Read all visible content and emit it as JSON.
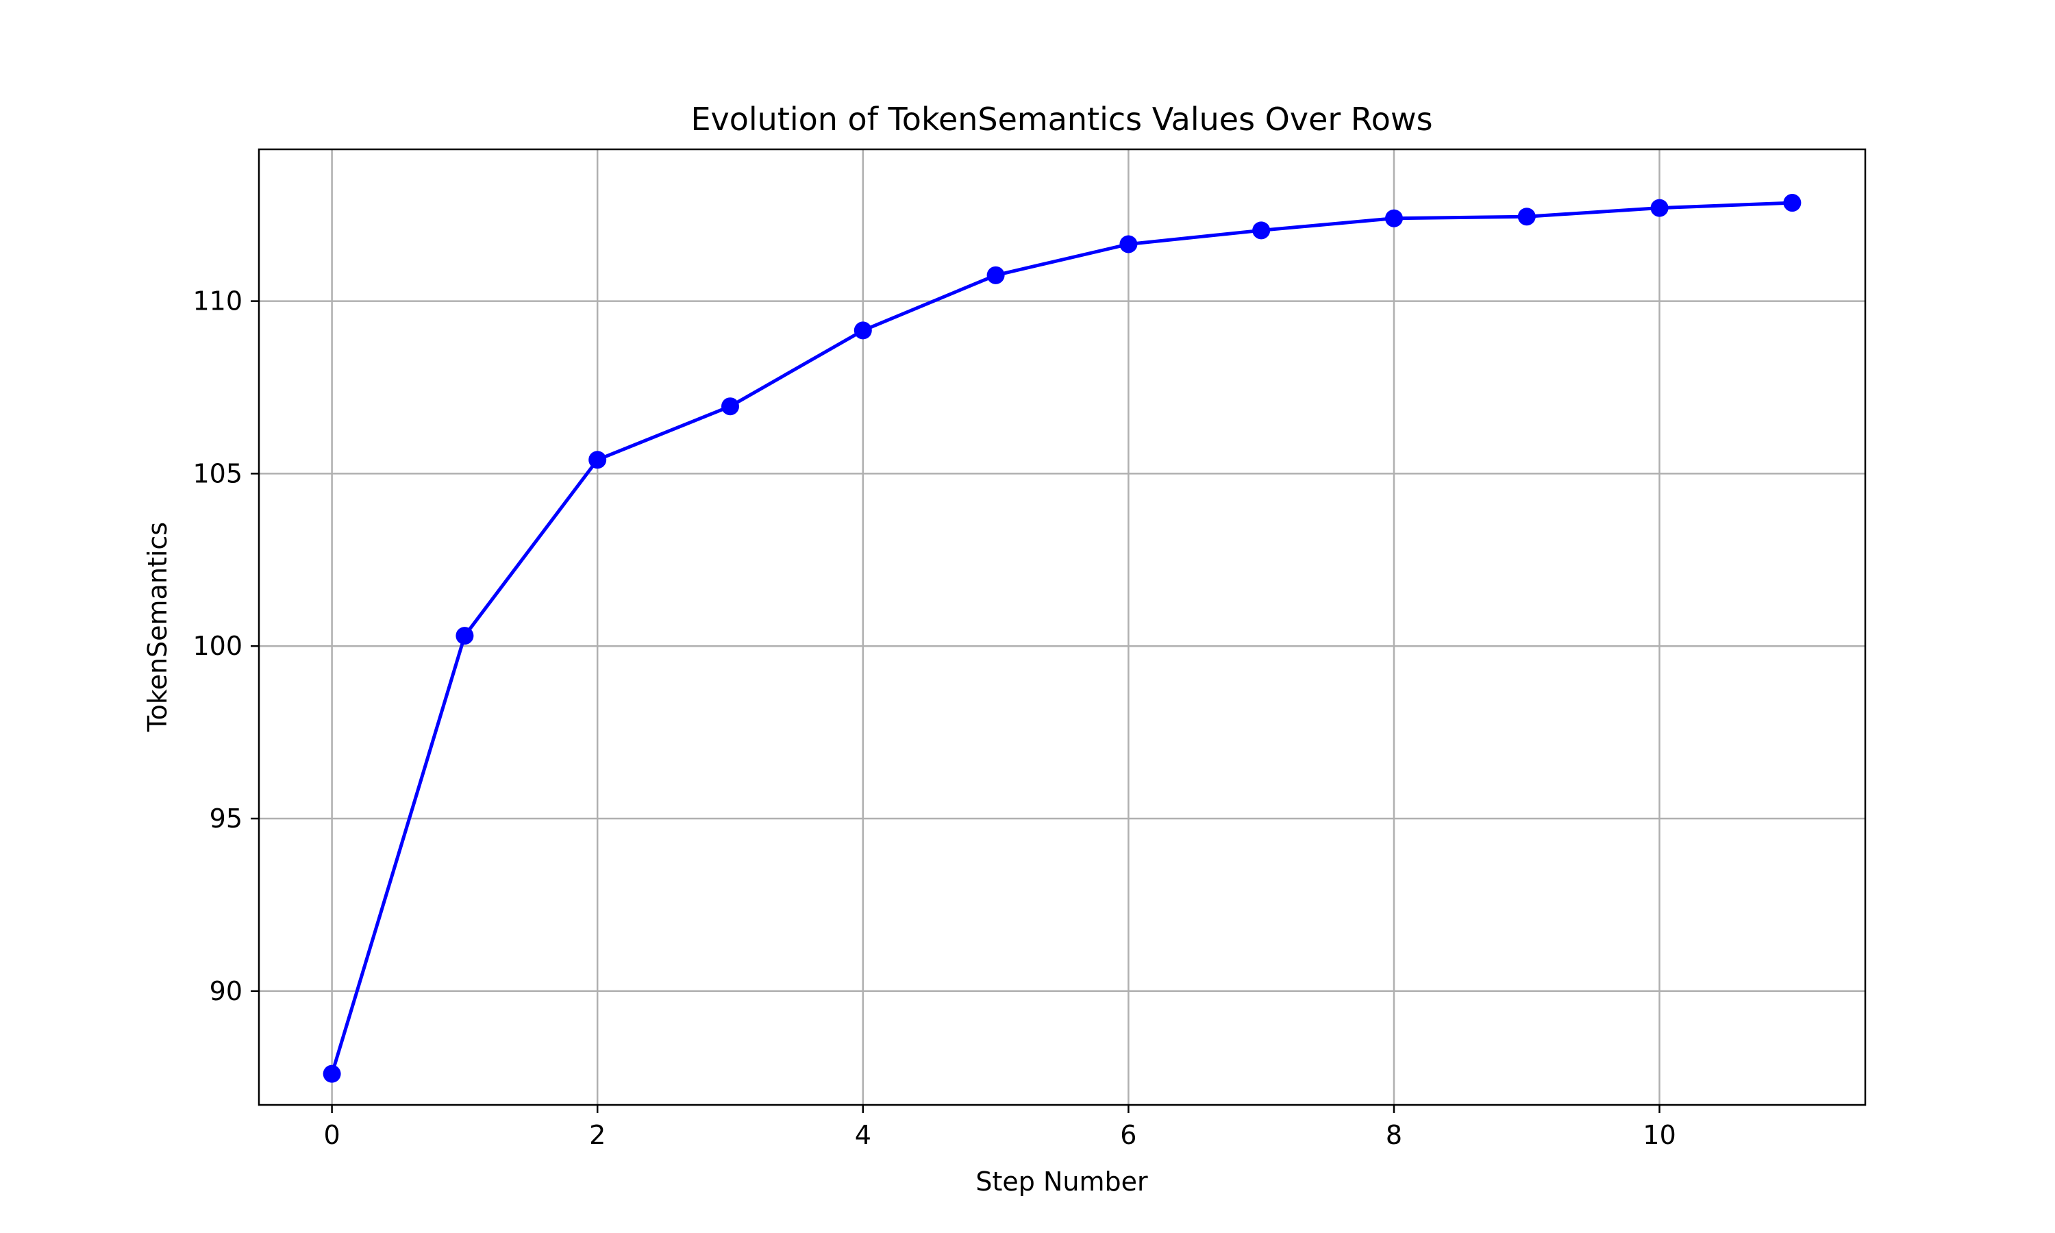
{
  "chart_data": {
    "type": "line",
    "title": "Evolution of TokenSemantics Values Over Rows",
    "xlabel": "Step Number",
    "ylabel": "TokenSemantics",
    "x": [
      0,
      1,
      2,
      3,
      4,
      5,
      6,
      7,
      8,
      9,
      10,
      11
    ],
    "series": [
      {
        "values": [
          87.6,
          100.3,
          105.4,
          106.95,
          109.15,
          110.75,
          111.65,
          112.05,
          112.4,
          112.45,
          112.7,
          112.85
        ],
        "color": "#0000ff",
        "marker": "circle"
      }
    ],
    "xticks": [
      0,
      2,
      4,
      6,
      8,
      10
    ],
    "yticks": [
      90,
      95,
      100,
      105,
      110
    ],
    "xlim": [
      -0.55,
      11.55
    ],
    "ylim": [
      86.7,
      114.4
    ],
    "grid": true
  }
}
